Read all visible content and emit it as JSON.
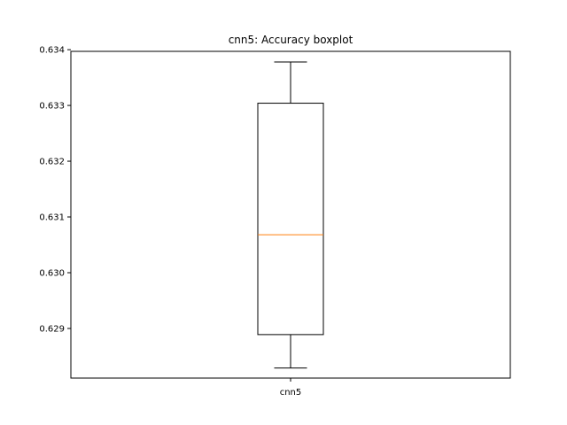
{
  "chart_data": {
    "type": "boxplot",
    "title": "cnn5: Accuracy boxplot",
    "xlabel": "",
    "ylabel": "",
    "categories": [
      "cnn5"
    ],
    "boxes": [
      {
        "label": "cnn5",
        "whisker_low": 0.62829,
        "q1": 0.62889,
        "median": 0.63068,
        "q3": 0.63304,
        "whisker_high": 0.63378
      }
    ],
    "ylim": [
      0.62811,
      0.63397
    ],
    "yticks": [
      0.629,
      0.63,
      0.631,
      0.632,
      0.633,
      0.634
    ],
    "ytick_labels": [
      "0.629",
      "0.630",
      "0.631",
      "0.632",
      "0.633",
      "0.634"
    ],
    "grid": false,
    "colors": {
      "box": "#000000",
      "median": "#ff7f0e",
      "axes": "#000000"
    }
  }
}
